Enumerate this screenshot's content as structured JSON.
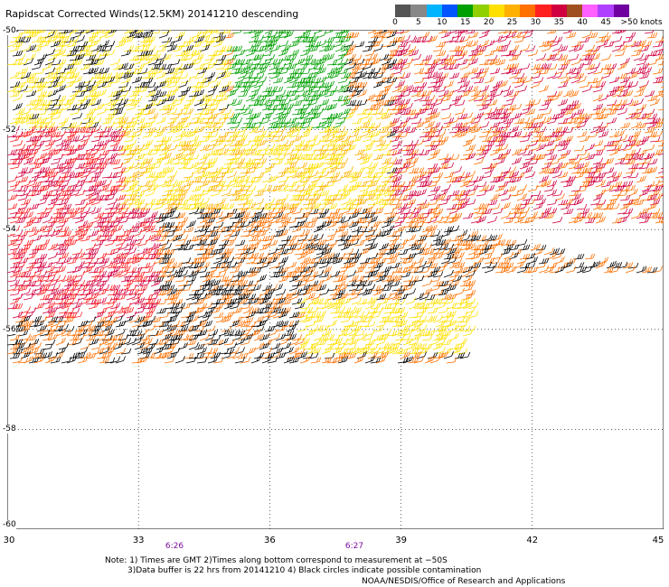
{
  "title": "Rapidscat Corrected Winds(12.5KM) 20141210 descending",
  "legend": {
    "colors": [
      "#555555",
      "#888888",
      "#00b4ff",
      "#0055ff",
      "#00a000",
      "#90d000",
      "#ffe000",
      "#ffb000",
      "#ff7000",
      "#ff2020",
      "#d00040",
      "#a05020",
      "#ff60ff",
      "#b040ff",
      "#7000a0"
    ],
    "labels": [
      "0",
      "5",
      "10",
      "15",
      "20",
      "25",
      "30",
      "35",
      "40",
      "45",
      ">50"
    ],
    "units": "knots"
  },
  "map": {
    "lon_range": [
      30,
      45
    ],
    "lat_range": [
      -60,
      -50
    ],
    "lon_ticks": [
      "30",
      "33",
      "36",
      "39",
      "42",
      "45"
    ],
    "lat_ticks": [
      "-50",
      "-52",
      "-54",
      "-56",
      "-58",
      "-60"
    ],
    "grid": "dotted",
    "pass_times": [
      "6:26",
      "6:27"
    ]
  },
  "notes": {
    "line1": "Note: 1) Times are GMT 2)Times along bottom correspond to measurement at −50S",
    "line2": "3)Data buffer is 22 hrs from 20141210 4) Black circles indicate possible contamination",
    "credit": "NOAA/NESDIS/Office of Research and Applications"
  },
  "icons": {
    "wind_barb": "wind-barb-icon"
  }
}
